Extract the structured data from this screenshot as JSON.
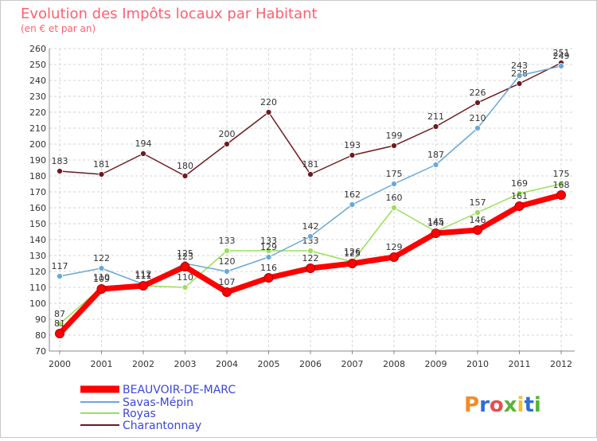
{
  "chart_data": {
    "type": "line",
    "title": "Evolution des Impôts locaux par Habitant",
    "subtitle": "(en € et par an)",
    "xlabel": "",
    "ylabel": "",
    "x": [
      "2000",
      "2001",
      "2002",
      "2003",
      "2004",
      "2005",
      "2006",
      "2007",
      "2008",
      "2009",
      "2010",
      "2011",
      "2012"
    ],
    "ylim": [
      70,
      260
    ],
    "yticks": [
      70,
      80,
      90,
      100,
      110,
      120,
      130,
      140,
      150,
      160,
      170,
      180,
      190,
      200,
      210,
      220,
      230,
      240,
      250,
      260
    ],
    "grid": true,
    "legend_position": "bottom-left",
    "series": [
      {
        "name": "BEAUVOIR-DE-MARC",
        "color": "#ff0000",
        "values": [
          81,
          109,
          111,
          123,
          107,
          116,
          122,
          125,
          129,
          144,
          146,
          161,
          168
        ]
      },
      {
        "name": "Savas-Mépin",
        "color": "#6aa8d8",
        "values": [
          117,
          122,
          112,
          125,
          120,
          129,
          142,
          162,
          175,
          187,
          210,
          243,
          249
        ]
      },
      {
        "name": "Royas",
        "color": "#99e05a",
        "values": [
          87,
          110,
          111,
          110,
          133,
          133,
          133,
          126,
          160,
          145,
          157,
          169,
          175
        ]
      },
      {
        "name": "Charantonnay",
        "color": "#6e1a1e",
        "values": [
          183,
          181,
          194,
          180,
          200,
          220,
          181,
          193,
          199,
          211,
          226,
          238,
          251
        ]
      }
    ]
  },
  "brand": {
    "logo_text": "Proxiti"
  },
  "colors": {
    "title": "#ff5f6e",
    "legend_text": "#3b48d9",
    "axis_text": "#333333"
  }
}
